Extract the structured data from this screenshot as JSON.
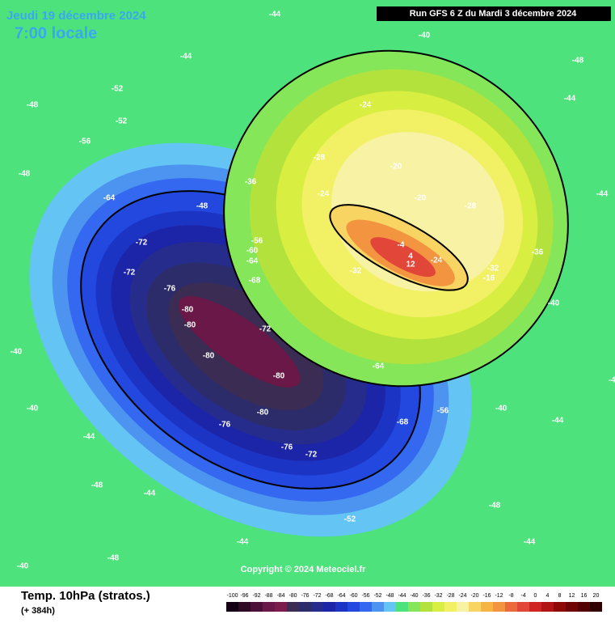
{
  "header": {
    "date": "Jeudi 19 décembre 2024",
    "time": "7:00 locale",
    "run": "Run GFS 6 Z du Mardi 3 décembre 2024"
  },
  "copyright": "Copyright © 2024 Meteociel.fr",
  "footer": {
    "title": "Temp. 10hPa (stratos.)",
    "lead": "(+ 384h)"
  },
  "legend": {
    "values": [
      -100,
      -96,
      -92,
      -88,
      -84,
      -80,
      -76,
      -72,
      -68,
      -64,
      -60,
      -56,
      -52,
      -48,
      -44,
      -40,
      -36,
      -32,
      -28,
      -24,
      -20,
      -16,
      -12,
      -8,
      -4,
      0,
      4,
      8,
      12,
      16,
      20
    ],
    "colors": [
      "#140014",
      "#2e0a24",
      "#4a1038",
      "#6a1848",
      "#7a1c4c",
      "#3a2c52",
      "#2c2c6a",
      "#262c8c",
      "#1c24a8",
      "#1c34c4",
      "#2248e0",
      "#3468f0",
      "#4c94f0",
      "#64c4f4",
      "#4ee27c",
      "#86e65a",
      "#b4e23c",
      "#d8ee40",
      "#f2f064",
      "#f8f2a4",
      "#f8d462",
      "#f6b444",
      "#f29440",
      "#ea6a3c",
      "#e24638",
      "#d02424",
      "#b01414",
      "#8e0808",
      "#700404",
      "#520202",
      "#300000"
    ]
  },
  "map_labels": [
    -44,
    -44,
    -48,
    -48,
    -52,
    -56,
    -52,
    -48,
    -40,
    -40,
    -44,
    -44,
    -48,
    -64,
    -72,
    -72,
    -76,
    -80,
    -80,
    -80,
    -80,
    -76,
    -72,
    -80,
    -76,
    -72,
    -68,
    -64,
    -64,
    -68,
    -60,
    -56,
    -56,
    -52,
    -48,
    -44,
    -40,
    -36,
    -32,
    -28,
    -24,
    -24,
    -20,
    -20,
    -24,
    -28,
    -32,
    -36,
    -4,
    4,
    12,
    -16,
    -40,
    -40,
    -44,
    -44,
    -44,
    -48,
    -48,
    -44,
    -40,
    -44
  ]
}
